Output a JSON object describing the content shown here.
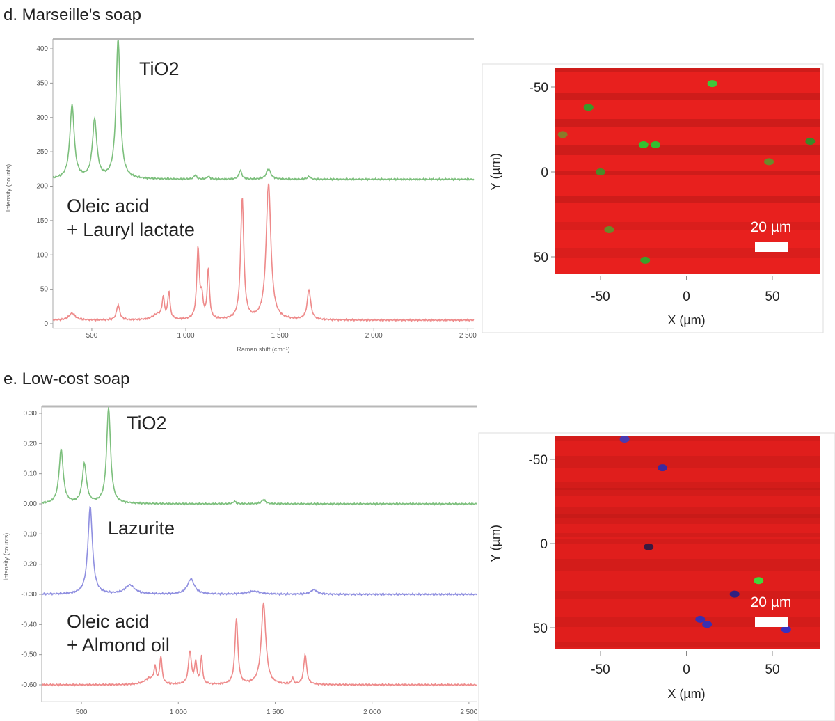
{
  "panels": [
    {
      "title": "d. Marseille's soap",
      "map": {
        "x_label": "X (µm)",
        "y_label": "Y (µm)",
        "x_ticks": [
          "-50",
          "0",
          "50"
        ],
        "y_ticks": [
          "-50",
          "0",
          "50"
        ],
        "scale_bar": "20 µm",
        "base_color": "#e8201e",
        "spots": [
          [
            15,
            -52,
            "#3ec83a"
          ],
          [
            -25,
            -16,
            "#33c030"
          ],
          [
            -18,
            -16,
            "#33c030"
          ],
          [
            -57,
            -38,
            "#3a9a2a"
          ],
          [
            -50,
            0,
            "#4a8a28"
          ],
          [
            -45,
            34,
            "#6a8a2a"
          ],
          [
            -24,
            52,
            "#3aa02a"
          ],
          [
            48,
            -6,
            "#6a8a2a"
          ],
          [
            72,
            -18,
            "#3a8a28"
          ],
          [
            -72,
            -22,
            "#8a7a2a"
          ]
        ]
      }
    },
    {
      "title": "e. Low-cost soap",
      "map": {
        "x_label": "X (µm)",
        "y_label": "Y (µm)",
        "x_ticks": [
          "-50",
          "0",
          "50"
        ],
        "y_ticks": [
          "-50",
          "0",
          "50"
        ],
        "scale_bar": "20 µm",
        "base_color": "#e01e1c",
        "spots": [
          [
            -14,
            -45,
            "#3a2aa0"
          ],
          [
            -36,
            -62,
            "#4a3ab0"
          ],
          [
            -22,
            2,
            "#3a1a40"
          ],
          [
            42,
            22,
            "#40d83a"
          ],
          [
            8,
            45,
            "#3a30b0"
          ],
          [
            12,
            48,
            "#3a30b0"
          ],
          [
            58,
            51,
            "#3a30c0"
          ],
          [
            28,
            30,
            "#302080"
          ]
        ]
      }
    }
  ],
  "chart_data": [
    {
      "type": "line",
      "xlabel": "Raman shift (cm⁻¹)",
      "ylabel": "Intensity (counts)",
      "xlim": [
        293,
        2532
      ],
      "ylim": [
        0,
        413
      ],
      "x_ticks": [
        500,
        1000,
        1500,
        2000,
        2500
      ],
      "x_tick_labels": [
        "500",
        "1 000",
        "1 500",
        "2 000",
        "2 500"
      ],
      "y_ticks": [
        0,
        50,
        100,
        150,
        200,
        250,
        300,
        350,
        400
      ],
      "y_tick_labels": [
        "0",
        "50",
        "100",
        "150",
        "200",
        "250",
        "300",
        "350",
        "400"
      ],
      "series": [
        {
          "name": "TiO2",
          "color": "#7cbf7c",
          "baseline": 210,
          "peaks": [
            [
              395,
              107,
              14
            ],
            [
              515,
              85,
              14
            ],
            [
              640,
              205,
              13
            ],
            [
              1050,
              6,
              8
            ],
            [
              1120,
              4,
              8
            ],
            [
              1290,
              13,
              9
            ],
            [
              1440,
              15,
              14
            ],
            [
              1655,
              4,
              10
            ]
          ]
        },
        {
          "name": "Oleic acid\n+ Lauryl lactate",
          "label_lines": [
            "Oleic acid",
            "+ Lauryl lactate"
          ],
          "color": "#ee8a8a",
          "baseline": 5,
          "peaks": [
            [
              395,
              10,
              20
            ],
            [
              640,
              22,
              10
            ],
            [
              880,
              30,
              7
            ],
            [
              910,
              40,
              7
            ],
            [
              1065,
              103,
              8
            ],
            [
              1085,
              30,
              8
            ],
            [
              1120,
              73,
              7
            ],
            [
              1300,
              178,
              10
            ],
            [
              1440,
              198,
              15
            ],
            [
              1655,
              44,
              11
            ],
            [
              850,
              8,
              30
            ]
          ]
        }
      ]
    },
    {
      "type": "line",
      "xlabel": "",
      "ylabel": "Intensity (counts)",
      "xlim": [
        295,
        2540
      ],
      "ylim": [
        -0.62,
        0.32
      ],
      "x_ticks": [
        500,
        1000,
        1500,
        2000,
        2500
      ],
      "x_tick_labels": [
        "500",
        "1 000",
        "1 500",
        "2 000",
        "2 500"
      ],
      "y_ticks": [
        0.3,
        0.2,
        0.1,
        0.0,
        -0.1,
        -0.2,
        -0.3,
        -0.4,
        -0.5,
        -0.6
      ],
      "y_tick_labels": [
        "0.30",
        "0.20",
        "0.10",
        "0.00",
        "-0.10",
        "-0.20",
        "-0.30",
        "-0.40",
        "-0.50",
        "-0.60"
      ],
      "series": [
        {
          "name": "TiO2",
          "color": "#7cbf7c",
          "baseline": 0.0,
          "peaks": [
            [
              395,
              0.18,
              13
            ],
            [
              515,
              0.13,
              13
            ],
            [
              640,
              0.32,
              12
            ],
            [
              1290,
              0.008,
              9
            ],
            [
              1440,
              0.014,
              12
            ]
          ]
        },
        {
          "name": "Lazurite",
          "color": "#8f8fe0",
          "baseline": -0.3,
          "peaks": [
            [
              545,
              0.29,
              14
            ],
            [
              750,
              0.03,
              30
            ],
            [
              1065,
              0.05,
              22
            ],
            [
              1390,
              0.01,
              40
            ],
            [
              1700,
              0.015,
              20
            ]
          ]
        },
        {
          "name": "Oleic acid\n+ Almond oil",
          "label_lines": [
            "Oleic acid",
            "+ Almond oil"
          ],
          "color": "#ee8a8a",
          "baseline": -0.6,
          "peaks": [
            [
              880,
              0.05,
              7
            ],
            [
              910,
              0.09,
              7
            ],
            [
              1060,
              0.11,
              9
            ],
            [
              1090,
              0.07,
              7
            ],
            [
              1120,
              0.09,
              6
            ],
            [
              1300,
              0.22,
              9
            ],
            [
              1440,
              0.27,
              14
            ],
            [
              1590,
              0.02,
              6
            ],
            [
              1655,
              0.1,
              9
            ],
            [
              850,
              0.02,
              30
            ]
          ]
        }
      ]
    }
  ]
}
